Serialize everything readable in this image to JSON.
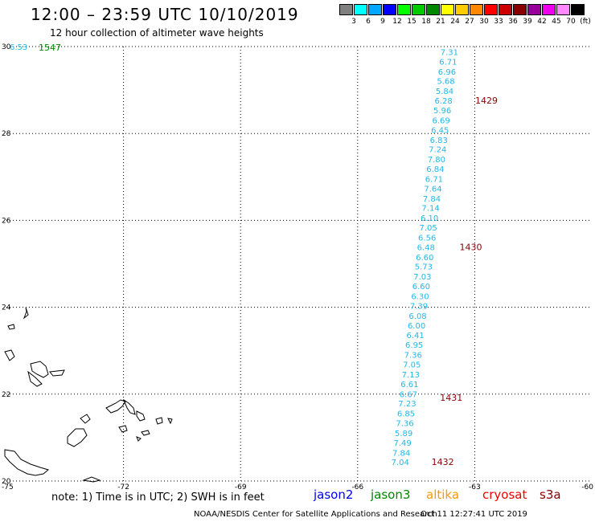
{
  "header": {
    "title": "12:00 – 23:59 UTC 10/10/2019",
    "subtitle": "12 hour collection of altimeter wave heights"
  },
  "legend": {
    "unit": "(ft)",
    "items": [
      {
        "label": "3",
        "color": "#808080"
      },
      {
        "label": "6",
        "color": "#00ffff"
      },
      {
        "label": "9",
        "color": "#00a8ff"
      },
      {
        "label": "12",
        "color": "#0000ff"
      },
      {
        "label": "15",
        "color": "#00ff00"
      },
      {
        "label": "18",
        "color": "#00cc00"
      },
      {
        "label": "21",
        "color": "#008800"
      },
      {
        "label": "24",
        "color": "#ffff00"
      },
      {
        "label": "27",
        "color": "#ffcc00"
      },
      {
        "label": "30",
        "color": "#ff8800"
      },
      {
        "label": "33",
        "color": "#ff0000"
      },
      {
        "label": "36",
        "color": "#cc0000"
      },
      {
        "label": "39",
        "color": "#880000"
      },
      {
        "label": "42",
        "color": "#990099"
      },
      {
        "label": "45",
        "color": "#ee00ee"
      },
      {
        "label": "70",
        "color": "#ff88ff"
      },
      {
        "label": "",
        "color": "#000000"
      }
    ]
  },
  "map": {
    "lon_ticks": [
      "-75",
      "-72",
      "-69",
      "-66",
      "-63",
      "-60"
    ],
    "lat_ticks": [
      "30",
      "28",
      "26",
      "24",
      "22",
      "20"
    ],
    "wave_color": "#22b8e8",
    "time_color": "#880000",
    "track": [
      {
        "lon": -63.65,
        "lat": 29.88,
        "swh": "7.31"
      },
      {
        "lon": -63.68,
        "lat": 29.66,
        "swh": "6.71"
      },
      {
        "lon": -63.71,
        "lat": 29.43,
        "swh": "6.96"
      },
      {
        "lon": -63.74,
        "lat": 29.21,
        "swh": "5.68"
      },
      {
        "lon": -63.77,
        "lat": 28.98,
        "swh": "5.84"
      },
      {
        "lon": -63.8,
        "lat": 28.76,
        "swh": "6.28"
      },
      {
        "lon": -63.83,
        "lat": 28.54,
        "swh": "5.96"
      },
      {
        "lon": -63.86,
        "lat": 28.31,
        "swh": "6.69"
      },
      {
        "lon": -63.89,
        "lat": 28.09,
        "swh": "6.45"
      },
      {
        "lon": -63.92,
        "lat": 27.86,
        "swh": "6.83"
      },
      {
        "lon": -63.95,
        "lat": 27.64,
        "swh": "7.24"
      },
      {
        "lon": -63.98,
        "lat": 27.41,
        "swh": "7.80"
      },
      {
        "lon": -64.01,
        "lat": 27.19,
        "swh": "6.84"
      },
      {
        "lon": -64.04,
        "lat": 26.96,
        "swh": "6.71"
      },
      {
        "lon": -64.07,
        "lat": 26.74,
        "swh": "7.64"
      },
      {
        "lon": -64.1,
        "lat": 26.51,
        "swh": "7.84"
      },
      {
        "lon": -64.13,
        "lat": 26.29,
        "swh": "7.14"
      },
      {
        "lon": -64.16,
        "lat": 26.06,
        "swh": "6.10"
      },
      {
        "lon": -64.19,
        "lat": 25.84,
        "swh": "7.05"
      },
      {
        "lon": -64.22,
        "lat": 25.61,
        "swh": "6.56"
      },
      {
        "lon": -64.25,
        "lat": 25.39,
        "swh": "6.48"
      },
      {
        "lon": -64.28,
        "lat": 25.16,
        "swh": "6.60"
      },
      {
        "lon": -64.31,
        "lat": 24.94,
        "swh": "5.73"
      },
      {
        "lon": -64.34,
        "lat": 24.71,
        "swh": "7.03"
      },
      {
        "lon": -64.37,
        "lat": 24.49,
        "swh": "6.60"
      },
      {
        "lon": -64.4,
        "lat": 24.26,
        "swh": "6.30"
      },
      {
        "lon": -64.43,
        "lat": 24.04,
        "swh": "7.39"
      },
      {
        "lon": -64.46,
        "lat": 23.81,
        "swh": "6.08"
      },
      {
        "lon": -64.49,
        "lat": 23.59,
        "swh": "6.00"
      },
      {
        "lon": -64.52,
        "lat": 23.36,
        "swh": "6.41"
      },
      {
        "lon": -64.55,
        "lat": 23.14,
        "swh": "6.95"
      },
      {
        "lon": -64.58,
        "lat": 22.91,
        "swh": "7.36"
      },
      {
        "lon": -64.61,
        "lat": 22.69,
        "swh": "7.05"
      },
      {
        "lon": -64.64,
        "lat": 22.46,
        "swh": "7.13"
      },
      {
        "lon": -64.67,
        "lat": 22.24,
        "swh": "6.61"
      },
      {
        "lon": -64.7,
        "lat": 22.01,
        "swh": "6.67"
      },
      {
        "lon": -64.73,
        "lat": 21.79,
        "swh": "7.23"
      },
      {
        "lon": -64.76,
        "lat": 21.56,
        "swh": "6.85"
      },
      {
        "lon": -64.79,
        "lat": 21.34,
        "swh": "7.36"
      },
      {
        "lon": -64.82,
        "lat": 21.11,
        "swh": "5.89"
      },
      {
        "lon": -64.85,
        "lat": 20.89,
        "swh": "7.49"
      },
      {
        "lon": -64.88,
        "lat": 20.66,
        "swh": "7.84"
      },
      {
        "lon": -64.91,
        "lat": 20.44,
        "swh": "7.04"
      }
    ],
    "times": [
      {
        "label": "1429",
        "lon": -62.7,
        "lat": 28.76
      },
      {
        "label": "1430",
        "lon": -63.1,
        "lat": 25.39
      },
      {
        "label": "1431",
        "lon": -63.6,
        "lat": 21.92
      },
      {
        "label": "1432",
        "lon": -63.82,
        "lat": 20.44
      }
    ],
    "corner": {
      "swh": "6.53",
      "time": "1547",
      "swh_color": "#22b8e8",
      "time_color": "#008800"
    }
  },
  "footer": {
    "note": "note: 1) Time is in UTC; 2) SWH is in feet",
    "satellites": [
      {
        "name": "jason2",
        "color": "#0000ee",
        "x": 390
      },
      {
        "name": "jason3",
        "color": "#008800",
        "x": 461
      },
      {
        "name": "altika",
        "color": "#ff9900",
        "x": 530
      },
      {
        "name": "cryosat",
        "color": "#ee0000",
        "x": 600
      },
      {
        "name": "s3a",
        "color": "#880000",
        "x": 671
      }
    ],
    "credit": "NOAA/NESDIS Center for Satellite Applications and Research",
    "timestamp": "Oct 11 12:27:41 UTC 2019"
  }
}
